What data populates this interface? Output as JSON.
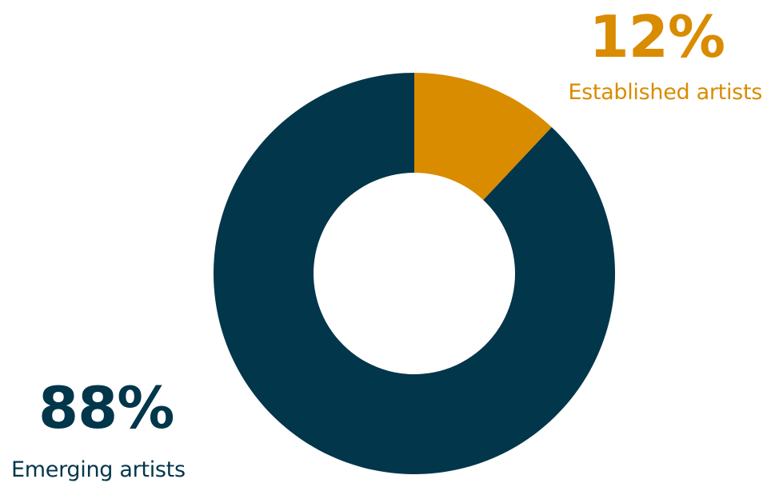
{
  "chart_data": {
    "type": "pie",
    "variant": "donut",
    "slices": [
      {
        "label": "Established artists",
        "value": 12,
        "value_label": "12%",
        "color": "#D98C00"
      },
      {
        "label": "Emerging artists",
        "value": 88,
        "value_label": "88%",
        "color": "#02364B"
      }
    ],
    "start_angle_deg": 0,
    "direction": "clockwise",
    "legend": "none"
  }
}
